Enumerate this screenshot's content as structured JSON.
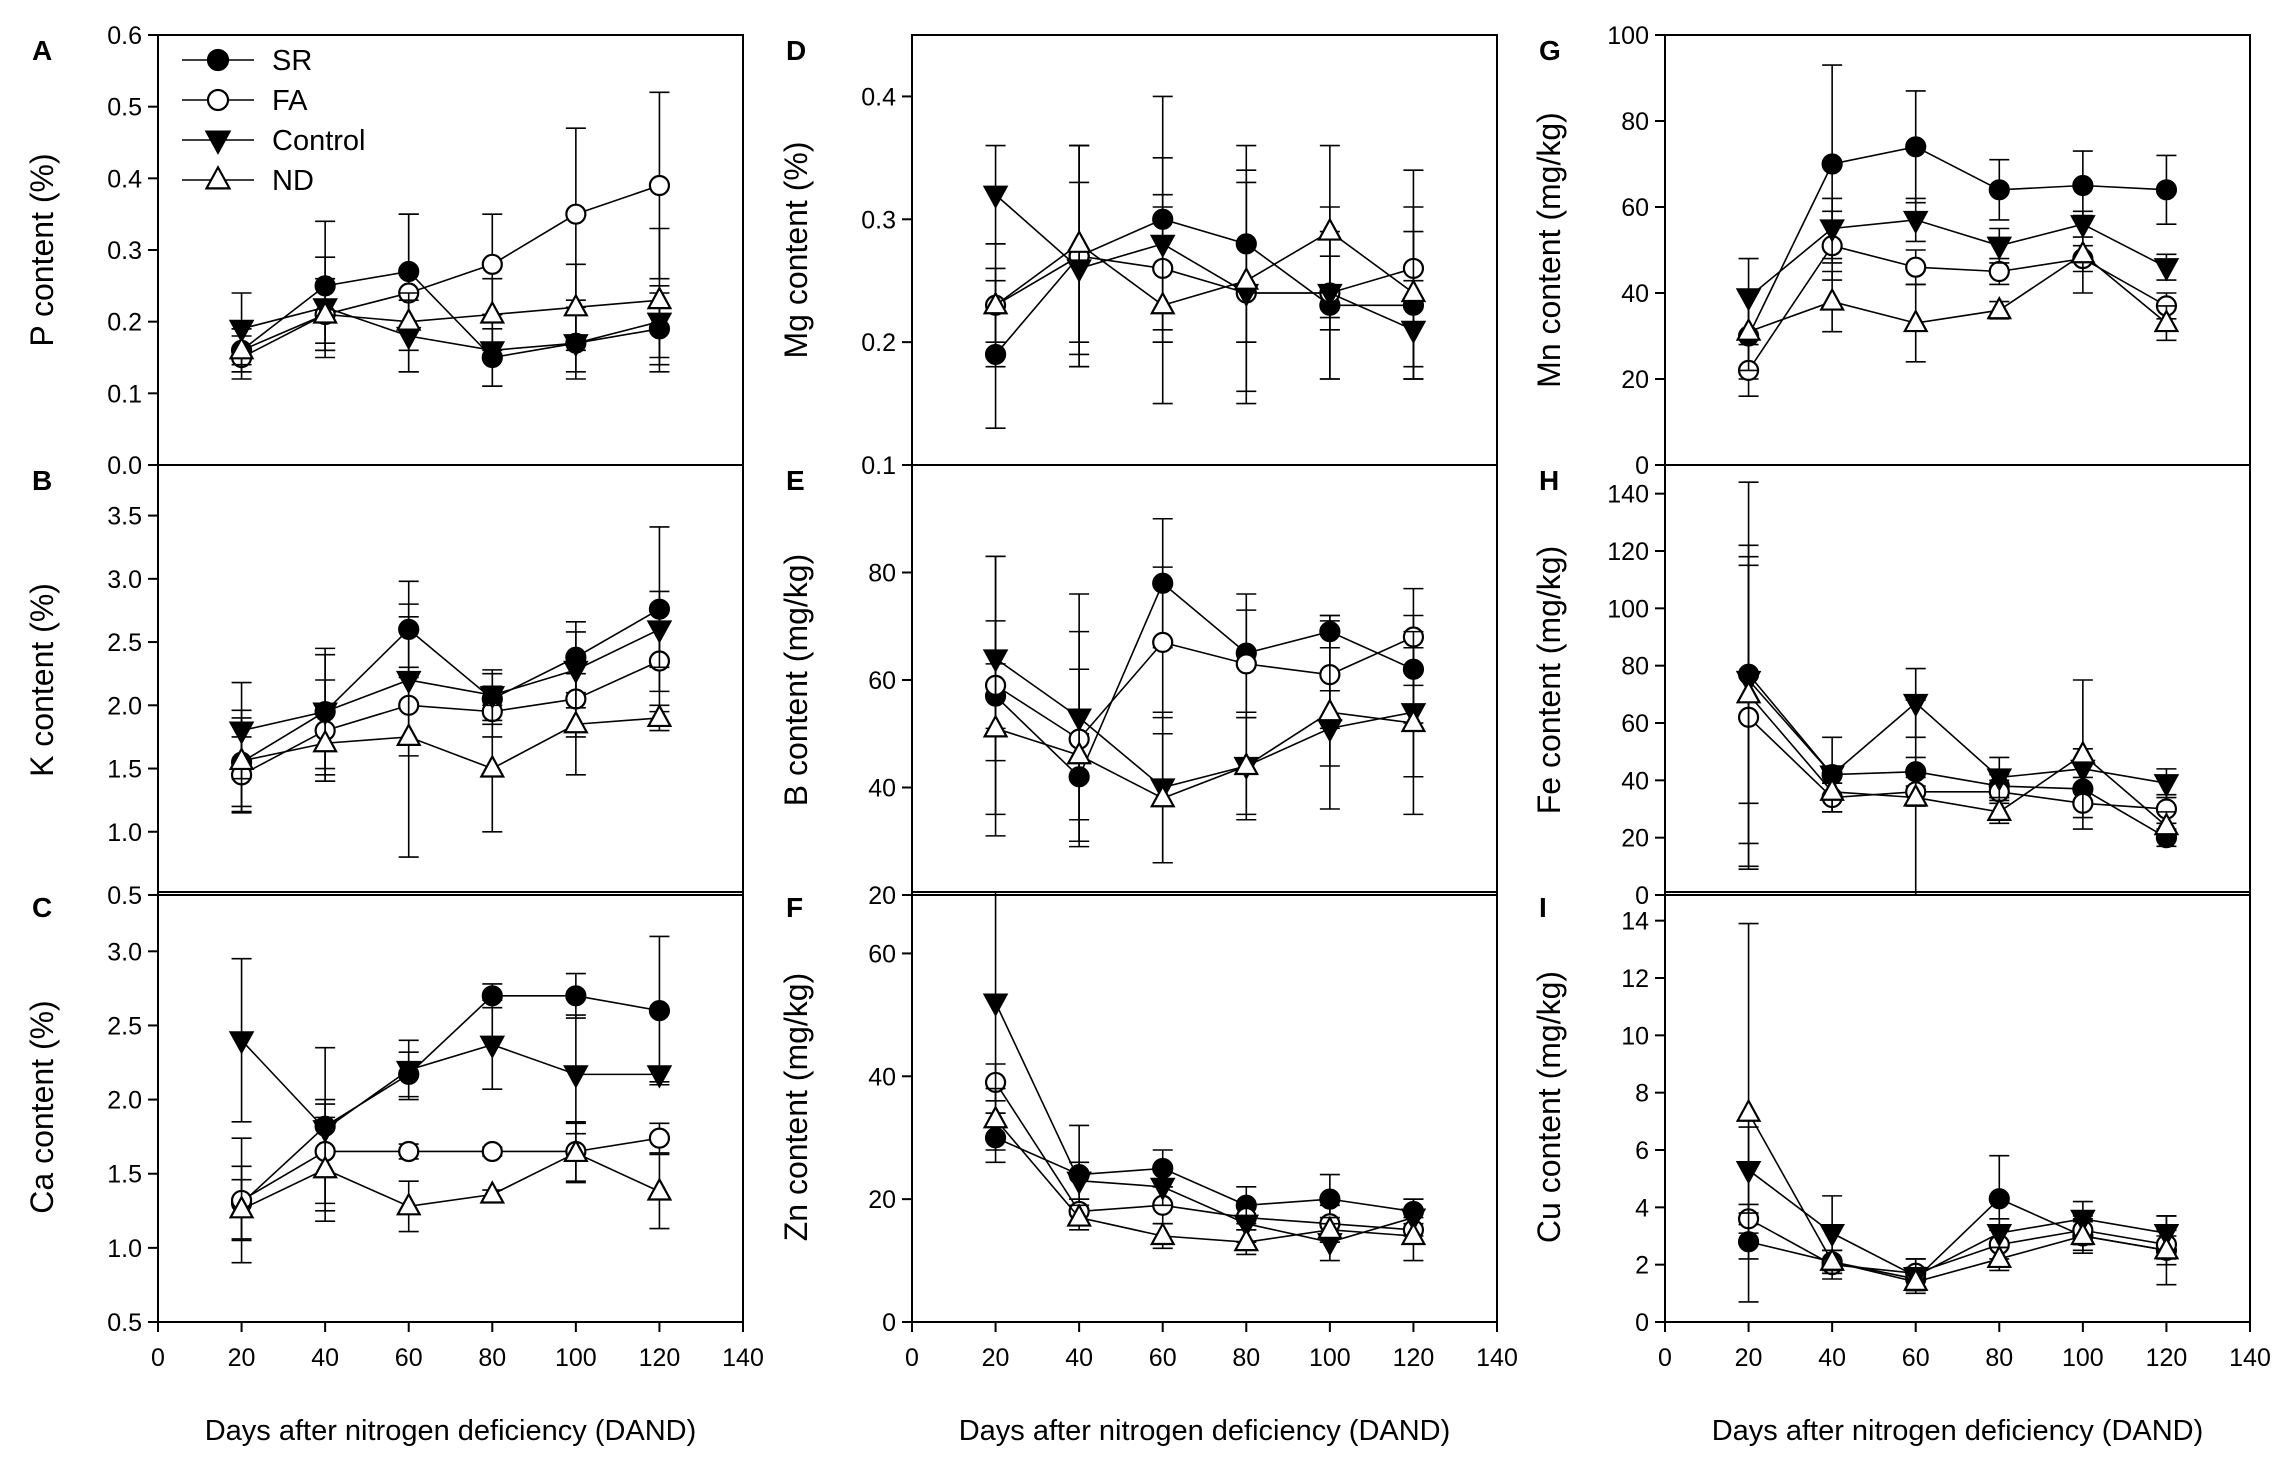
{
  "legend": [
    {
      "name": "SR",
      "marker": "circle",
      "fill": "#000000"
    },
    {
      "name": "FA",
      "marker": "circle",
      "fill": "#ffffff"
    },
    {
      "name": "Control",
      "marker": "triangle-down",
      "fill": "#000000"
    },
    {
      "name": "ND",
      "marker": "triangle-up",
      "fill": "#ffffff"
    }
  ],
  "chart_data": [
    {
      "id": "A",
      "type": "line",
      "column": 0,
      "row": 0,
      "ylabel": "P content (%)",
      "xlabel": "",
      "xlim": [
        0,
        140
      ],
      "ylim": [
        0,
        0.6
      ],
      "yticks": [
        "0.0",
        "0.1",
        "0.2",
        "0.3",
        "0.4",
        "0.5",
        "0.6"
      ],
      "ytick_values": [
        0,
        0.1,
        0.2,
        0.3,
        0.4,
        0.5,
        0.6
      ],
      "xticks": [],
      "xtick_values": [],
      "x": [
        20,
        40,
        60,
        80,
        100,
        120
      ],
      "series": [
        {
          "name": "SR",
          "values": [
            0.16,
            0.25,
            0.27,
            0.15,
            0.17,
            0.19
          ],
          "err": [
            0.03,
            0.09,
            0.08,
            0.04,
            0.04,
            0.05
          ]
        },
        {
          "name": "FA",
          "values": [
            0.15,
            0.21,
            0.24,
            0.28,
            0.35,
            0.39
          ],
          "err": [
            0.03,
            0.05,
            0.11,
            0.07,
            0.12,
            0.13
          ]
        },
        {
          "name": "Control",
          "values": [
            0.19,
            0.22,
            0.18,
            0.16,
            0.17,
            0.2
          ],
          "err": [
            0.05,
            0.07,
            0.05,
            0.05,
            0.05,
            0.05
          ]
        },
        {
          "name": "ND",
          "values": [
            0.16,
            0.21,
            0.2,
            0.21,
            0.22,
            0.23
          ],
          "err": [
            0.03,
            0.04,
            0.04,
            0.05,
            0.06,
            0.1
          ]
        }
      ],
      "show_legend": true
    },
    {
      "id": "B",
      "type": "line",
      "column": 0,
      "row": 1,
      "ylabel": "K content (%)",
      "xlabel": "",
      "xlim": [
        0,
        140
      ],
      "ylim": [
        0.5,
        3.9
      ],
      "yticks": [
        "0.5",
        "1.0",
        "1.5",
        "2.0",
        "2.5",
        "3.0",
        "3.5"
      ],
      "ytick_values": [
        0.5,
        1.0,
        1.5,
        2.0,
        2.5,
        3.0,
        3.5
      ],
      "xticks": [],
      "xtick_values": [],
      "x": [
        20,
        40,
        60,
        80,
        100,
        120
      ],
      "series": [
        {
          "name": "SR",
          "values": [
            1.55,
            1.95,
            2.6,
            2.05,
            2.38,
            2.76
          ],
          "err": [
            0.35,
            0.45,
            0.38,
            0.2,
            0.28,
            0.65
          ]
        },
        {
          "name": "FA",
          "values": [
            1.45,
            1.8,
            2.0,
            1.95,
            2.05,
            2.35
          ],
          "err": [
            0.3,
            0.4,
            0.3,
            0.2,
            0.3,
            0.4
          ]
        },
        {
          "name": "Control",
          "values": [
            1.8,
            1.95,
            2.2,
            2.08,
            2.28,
            2.6
          ],
          "err": [
            0.38,
            0.5,
            0.6,
            0.2,
            0.3,
            0.3
          ]
        },
        {
          "name": "ND",
          "values": [
            1.56,
            1.7,
            1.75,
            1.5,
            1.85,
            1.9
          ],
          "err": [
            0.4,
            0.3,
            0.95,
            0.5,
            0.4,
            0.1
          ]
        }
      ],
      "show_legend": false
    },
    {
      "id": "C",
      "type": "line",
      "column": 0,
      "row": 2,
      "ylabel": "Ca content (%)",
      "xlabel": "Days after nitrogen deficiency (DAND)",
      "xlim": [
        0,
        140
      ],
      "ylim": [
        0.5,
        3.4
      ],
      "yticks": [
        "0.5",
        "1.0",
        "1.5",
        "2.0",
        "2.5",
        "3.0"
      ],
      "ytick_values": [
        0.5,
        1.0,
        1.5,
        2.0,
        2.5,
        3.0
      ],
      "xticks": [
        "0",
        "20",
        "40",
        "60",
        "80",
        "100",
        "120",
        "140"
      ],
      "xtick_values": [
        0,
        20,
        40,
        60,
        80,
        100,
        120,
        140
      ],
      "x": [
        20,
        40,
        60,
        80,
        100,
        120
      ],
      "series": [
        {
          "name": "SR",
          "values": [
            1.3,
            1.82,
            2.17,
            2.7,
            2.7,
            2.6
          ],
          "err": [
            0.25,
            0.15,
            0.15,
            0.08,
            0.15,
            0.5
          ]
        },
        {
          "name": "FA",
          "values": [
            1.32,
            1.65,
            1.65,
            1.65,
            1.65,
            1.74
          ],
          "err": [
            0.42,
            0.35,
            0.05,
            0.03,
            0.2,
            0.1
          ]
        },
        {
          "name": "Control",
          "values": [
            2.4,
            1.8,
            2.2,
            2.37,
            2.17,
            2.17
          ],
          "err": [
            0.55,
            0.55,
            0.2,
            0.3,
            0.4,
            0.05
          ]
        },
        {
          "name": "ND",
          "values": [
            1.26,
            1.53,
            1.28,
            1.36,
            1.64,
            1.38
          ],
          "err": [
            0.2,
            0.35,
            0.17,
            0.03,
            0.2,
            0.25
          ]
        }
      ],
      "show_legend": false
    },
    {
      "id": "D",
      "type": "line",
      "column": 1,
      "row": 0,
      "ylabel": "Mg content (%)",
      "xlabel": "",
      "xlim": [
        0,
        140
      ],
      "ylim": [
        0.1,
        0.45
      ],
      "yticks": [
        "0.1",
        "0.2",
        "0.3",
        "0.4"
      ],
      "ytick_values": [
        0.1,
        0.2,
        0.3,
        0.4
      ],
      "xticks": [],
      "xtick_values": [],
      "x": [
        20,
        40,
        60,
        80,
        100,
        120
      ],
      "series": [
        {
          "name": "SR",
          "values": [
            0.19,
            0.27,
            0.3,
            0.28,
            0.23,
            0.23
          ],
          "err": [
            0.06,
            0.09,
            0.1,
            0.08,
            0.06,
            0.06
          ]
        },
        {
          "name": "FA",
          "values": [
            0.23,
            0.27,
            0.26,
            0.24,
            0.24,
            0.26
          ],
          "err": [
            0.03,
            0.09,
            0.06,
            0.04,
            0.03,
            0.08
          ]
        },
        {
          "name": "Control",
          "values": [
            0.32,
            0.26,
            0.28,
            0.24,
            0.24,
            0.21
          ],
          "err": [
            0.04,
            0.07,
            0.07,
            0.09,
            0.07,
            0.04
          ]
        },
        {
          "name": "ND",
          "values": [
            0.23,
            0.28,
            0.23,
            0.25,
            0.29,
            0.24
          ],
          "err": [
            0.05,
            0.08,
            0.08,
            0.09,
            0.07,
            0.07
          ]
        }
      ],
      "show_legend": false
    },
    {
      "id": "E",
      "type": "line",
      "column": 1,
      "row": 1,
      "ylabel": "B content (mg/kg)",
      "xlabel": "",
      "xlim": [
        0,
        140
      ],
      "ylim": [
        20,
        100
      ],
      "yticks": [
        "20",
        "40",
        "60",
        "80"
      ],
      "ytick_values": [
        20,
        40,
        60,
        80
      ],
      "xticks": [],
      "xtick_values": [],
      "x": [
        20,
        40,
        60,
        80,
        100,
        120
      ],
      "series": [
        {
          "name": "SR",
          "values": [
            57,
            42,
            78,
            65,
            69,
            62
          ],
          "err": [
            6,
            8,
            12,
            11,
            3,
            10
          ]
        },
        {
          "name": "FA",
          "values": [
            59,
            49,
            67,
            63,
            61,
            68
          ],
          "err": [
            24,
            20,
            14,
            10,
            10,
            9
          ]
        },
        {
          "name": "Control",
          "values": [
            64,
            53,
            40,
            44,
            51,
            54
          ],
          "err": [
            19,
            23,
            14,
            9,
            7,
            12
          ]
        },
        {
          "name": "ND",
          "values": [
            51,
            46,
            38,
            44,
            54,
            52
          ],
          "err": [
            20,
            16,
            12,
            10,
            18,
            17
          ]
        }
      ],
      "show_legend": false
    },
    {
      "id": "F",
      "type": "line",
      "column": 1,
      "row": 2,
      "ylabel": "Zn content (mg/kg)",
      "xlabel": "Days after nitrogen deficiency (DAND)",
      "xlim": [
        0,
        140
      ],
      "ylim": [
        0,
        70
      ],
      "yticks": [
        "0",
        "20",
        "40",
        "60"
      ],
      "ytick_values": [
        0,
        20,
        40,
        60
      ],
      "xticks": [
        "0",
        "20",
        "40",
        "60",
        "80",
        "100",
        "120",
        "140"
      ],
      "xtick_values": [
        0,
        20,
        40,
        60,
        80,
        100,
        120,
        140
      ],
      "x": [
        20,
        40,
        60,
        80,
        100,
        120
      ],
      "series": [
        {
          "name": "SR",
          "values": [
            30,
            24,
            25,
            19,
            20,
            18
          ],
          "err": [
            4,
            8,
            3,
            3,
            4,
            2
          ]
        },
        {
          "name": "FA",
          "values": [
            39,
            18,
            19,
            17,
            16,
            15
          ],
          "err": [
            3,
            2,
            3,
            2,
            3,
            2
          ]
        },
        {
          "name": "Control",
          "values": [
            52,
            23,
            22,
            16,
            13,
            17
          ],
          "err": [
            18,
            3,
            3,
            3,
            3,
            3
          ]
        },
        {
          "name": "ND",
          "values": [
            33,
            17,
            14,
            13,
            15,
            14
          ],
          "err": [
            5,
            2,
            2,
            2,
            2,
            4
          ]
        }
      ],
      "show_legend": false
    },
    {
      "id": "G",
      "type": "line",
      "column": 2,
      "row": 0,
      "ylabel": "Mn content (mg/kg)",
      "xlabel": "",
      "xlim": [
        0,
        140
      ],
      "ylim": [
        0,
        100
      ],
      "yticks": [
        "0",
        "20",
        "40",
        "60",
        "80",
        "100"
      ],
      "ytick_values": [
        0,
        20,
        40,
        60,
        80,
        100
      ],
      "xticks": [],
      "xtick_values": [],
      "x": [
        20,
        40,
        60,
        80,
        100,
        120
      ],
      "series": [
        {
          "name": "SR",
          "values": [
            30,
            70,
            74,
            64,
            65,
            64
          ],
          "err": [
            10,
            23,
            13,
            7,
            8,
            8
          ]
        },
        {
          "name": "FA",
          "values": [
            22,
            51,
            46,
            45,
            48,
            37
          ],
          "err": [
            6,
            8,
            4,
            3,
            3,
            3
          ]
        },
        {
          "name": "Control",
          "values": [
            39,
            55,
            57,
            51,
            56,
            46
          ],
          "err": [
            9,
            7,
            5,
            4,
            3,
            3
          ]
        },
        {
          "name": "ND",
          "values": [
            31,
            38,
            33,
            36,
            49,
            33
          ],
          "err": [
            9,
            7,
            9,
            2,
            9,
            4
          ]
        }
      ],
      "show_legend": false
    },
    {
      "id": "H",
      "type": "line",
      "column": 2,
      "row": 1,
      "ylabel": "Fe content (mg/kg)",
      "xlabel": "",
      "xlim": [
        0,
        140
      ],
      "ylim": [
        0,
        150
      ],
      "yticks": [
        "0",
        "20",
        "40",
        "60",
        "80",
        "100",
        "120",
        "140"
      ],
      "ytick_values": [
        0,
        20,
        40,
        60,
        80,
        100,
        120,
        140
      ],
      "xticks": [],
      "xtick_values": [],
      "x": [
        20,
        40,
        60,
        80,
        100,
        120
      ],
      "series": [
        {
          "name": "SR",
          "values": [
            77,
            42,
            43,
            38,
            37,
            20
          ],
          "err": [
            67,
            3,
            5,
            4,
            4,
            3
          ]
        },
        {
          "name": "FA",
          "values": [
            62,
            34,
            36,
            36,
            32,
            30
          ],
          "err": [
            53,
            5,
            5,
            4,
            5,
            5
          ]
        },
        {
          "name": "Control",
          "values": [
            75,
            42,
            67,
            41,
            44,
            39
          ],
          "err": [
            43,
            13,
            12,
            7,
            7,
            5
          ]
        },
        {
          "name": "ND",
          "values": [
            70,
            36,
            34,
            29,
            49,
            24
          ],
          "err": [
            52,
            7,
            34,
            4,
            26,
            5
          ]
        }
      ],
      "show_legend": false
    },
    {
      "id": "I",
      "type": "line",
      "column": 2,
      "row": 2,
      "ylabel": "Cu content (mg/kg)",
      "xlabel": "Days after nitrogen deficiency (DAND)",
      "xlim": [
        0,
        140
      ],
      "ylim": [
        0,
        15
      ],
      "yticks": [
        "0",
        "2",
        "4",
        "6",
        "8",
        "10",
        "12",
        "14"
      ],
      "ytick_values": [
        0,
        2,
        4,
        6,
        8,
        10,
        12,
        14
      ],
      "xticks": [
        "0",
        "20",
        "40",
        "60",
        "80",
        "100",
        "120",
        "140"
      ],
      "xtick_values": [
        0,
        20,
        40,
        60,
        80,
        100,
        120,
        140
      ],
      "x": [
        20,
        40,
        60,
        80,
        100,
        120
      ],
      "series": [
        {
          "name": "SR",
          "values": [
            2.8,
            2.1,
            1.5,
            4.3,
            3.0,
            2.5
          ],
          "err": [
            0.6,
            0.4,
            0.4,
            1.5,
            0.6,
            0.5
          ]
        },
        {
          "name": "FA",
          "values": [
            3.6,
            2.0,
            1.7,
            2.7,
            3.2,
            2.7
          ],
          "err": [
            0.5,
            0.5,
            0.5,
            0.5,
            0.5,
            0.5
          ]
        },
        {
          "name": "Control",
          "values": [
            5.3,
            3.1,
            1.6,
            3.1,
            3.6,
            3.1
          ],
          "err": [
            1.5,
            1.3,
            0.6,
            0.5,
            0.6,
            0.6
          ]
        },
        {
          "name": "ND",
          "values": [
            7.3,
            2.1,
            1.4,
            2.2,
            3.0,
            2.5
          ],
          "err": [
            6.6,
            0.4,
            0.3,
            0.4,
            0.5,
            1.2
          ]
        }
      ],
      "show_legend": false
    }
  ]
}
